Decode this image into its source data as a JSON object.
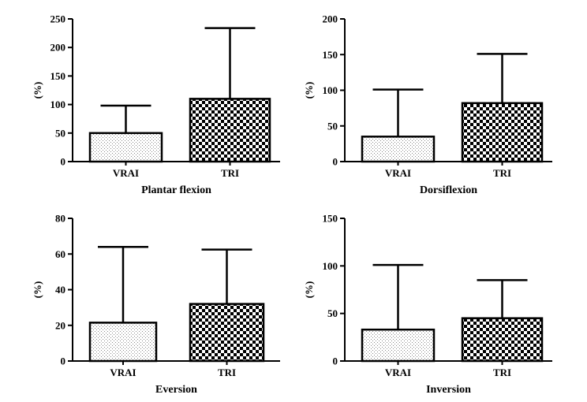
{
  "chart_data": [
    {
      "type": "bar",
      "title": "Plantar flexion",
      "ylabel": "(%)",
      "categories": [
        "VRAI",
        "TRI"
      ],
      "values": [
        50,
        110
      ],
      "error_upper": [
        98,
        234
      ],
      "yticks": [
        0,
        50,
        100,
        150,
        200,
        250
      ],
      "ylim": [
        0,
        250
      ],
      "patterns": [
        "dots",
        "checker"
      ]
    },
    {
      "type": "bar",
      "title": "Dorsiflexion",
      "ylabel": "(%)",
      "categories": [
        "VRAI",
        "TRI"
      ],
      "values": [
        35,
        82
      ],
      "error_upper": [
        101,
        151
      ],
      "yticks": [
        0,
        50,
        100,
        150,
        200
      ],
      "ylim": [
        0,
        200
      ],
      "patterns": [
        "dots",
        "checker"
      ]
    },
    {
      "type": "bar",
      "title": "Eversion",
      "ylabel": "(%)",
      "categories": [
        "VRAI",
        "TRI"
      ],
      "values": [
        21.5,
        32
      ],
      "error_upper": [
        64,
        62.5
      ],
      "yticks": [
        0,
        20,
        40,
        60,
        80
      ],
      "ylim": [
        0,
        80
      ],
      "patterns": [
        "dots",
        "checker"
      ]
    },
    {
      "type": "bar",
      "title": "Inversion",
      "ylabel": "(%)",
      "categories": [
        "VRAI",
        "TRI"
      ],
      "values": [
        33,
        45
      ],
      "error_upper": [
        101,
        85
      ],
      "yticks": [
        0,
        50,
        100,
        150
      ],
      "ylim": [
        0,
        150
      ],
      "patterns": [
        "dots",
        "checker"
      ]
    }
  ]
}
